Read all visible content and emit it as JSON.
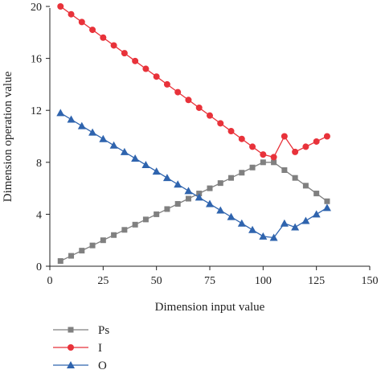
{
  "chart_data": {
    "type": "line",
    "xlabel": "Dimension input value",
    "ylabel": "Dimension operation value",
    "xlim": [
      0,
      150
    ],
    "ylim": [
      0,
      20
    ],
    "xticks": [
      0,
      25,
      50,
      75,
      100,
      125,
      150
    ],
    "yticks": [
      0,
      4,
      8,
      12,
      16,
      20
    ],
    "xtick_labels": [
      "0",
      "25",
      "50",
      "75",
      "100",
      "125",
      "150"
    ],
    "ytick_labels": [
      "0",
      "4",
      "8",
      "12",
      "16",
      "20"
    ],
    "grid": false,
    "legend_position": "bottom-left",
    "x": [
      5,
      10,
      15,
      20,
      25,
      30,
      35,
      40,
      45,
      50,
      55,
      60,
      65,
      70,
      75,
      80,
      85,
      90,
      95,
      100,
      105,
      110,
      115,
      120,
      125,
      130
    ],
    "series": [
      {
        "name": "Ps",
        "color": "#808080",
        "marker": "square",
        "values": [
          0.4,
          0.8,
          1.2,
          1.6,
          2.0,
          2.4,
          2.8,
          3.2,
          3.6,
          4.0,
          4.4,
          4.8,
          5.2,
          5.6,
          6.0,
          6.4,
          6.8,
          7.2,
          7.6,
          8.0,
          8.0,
          7.4,
          6.8,
          6.2,
          5.6,
          5.0
        ]
      },
      {
        "name": "I",
        "color": "#e8323a",
        "marker": "circle",
        "values": [
          20.0,
          19.4,
          18.8,
          18.2,
          17.6,
          17.0,
          16.4,
          15.8,
          15.2,
          14.6,
          14.0,
          13.4,
          12.8,
          12.2,
          11.6,
          11.0,
          10.4,
          9.8,
          9.2,
          8.6,
          8.4,
          10.0,
          8.8,
          9.2,
          9.6,
          10.0
        ]
      },
      {
        "name": "O",
        "color": "#2f64ae",
        "marker": "triangle",
        "values": [
          11.8,
          11.3,
          10.8,
          10.3,
          9.8,
          9.3,
          8.8,
          8.3,
          7.8,
          7.3,
          6.8,
          6.3,
          5.8,
          5.3,
          4.8,
          4.3,
          3.8,
          3.3,
          2.8,
          2.3,
          2.2,
          3.3,
          3.0,
          3.5,
          4.0,
          4.5
        ]
      }
    ]
  }
}
